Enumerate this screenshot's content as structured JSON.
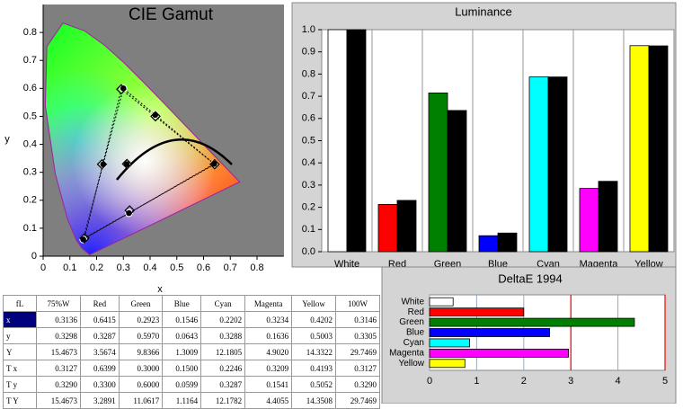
{
  "chart_data": [
    {
      "type": "scatter",
      "title": "CIE Gamut",
      "x_label": "x",
      "y_label": "y",
      "xlim": [
        0,
        0.9
      ],
      "ylim": [
        0,
        0.9
      ],
      "xticks": [
        0,
        0.1,
        0.2,
        0.3,
        0.4,
        0.5,
        0.6,
        0.7,
        0.8
      ],
      "yticks": [
        0,
        0.1,
        0.2,
        0.3,
        0.4,
        0.5,
        0.6,
        0.7,
        0.8
      ],
      "gamut_triangle": [
        1,
        2,
        3
      ],
      "series": [
        {
          "marker": "circle",
          "color": "#000000",
          "x": [
            0.3127,
            0.6399,
            0.3,
            0.15,
            0.2246,
            0.3209,
            0.4193
          ],
          "values": [
            0.329,
            0.33,
            0.6,
            0.0599,
            0.3287,
            0.1541,
            0.5052
          ]
        },
        {
          "marker": "diamond",
          "color": "#000000",
          "x": [
            0.3136,
            0.6415,
            0.2923,
            0.1546,
            0.2202,
            0.3234,
            0.4202
          ],
          "values": [
            0.3298,
            0.3287,
            0.597,
            0.0643,
            0.3288,
            0.1636,
            0.5003
          ]
        }
      ]
    },
    {
      "type": "bar",
      "title": "Luminance",
      "categories": [
        "White",
        "Red",
        "Green",
        "Blue",
        "Cyan",
        "Magenta",
        "Yellow"
      ],
      "ylim": [
        0,
        1.0
      ],
      "yticks": [
        {
          "value": 0,
          "label": "0.0"
        },
        0.1,
        0.2,
        0.3,
        0.4,
        0.5,
        0.6,
        0.7,
        0.8,
        0.9,
        {
          "value": 1,
          "label": "1.0"
        }
      ],
      "series": [
        {
          "colors": [
            "#ffffff",
            "#ff0000",
            "#008000",
            "#0000ff",
            "#00ffff",
            "#ff00ff",
            "#ffff00"
          ],
          "values": [
            1.0,
            0.213,
            0.715,
            0.072,
            0.787,
            0.285,
            0.928
          ]
        },
        {
          "color": "#000000",
          "values": [
            1.0,
            0.231,
            0.636,
            0.084,
            0.787,
            0.317,
            0.927
          ]
        }
      ]
    },
    {
      "type": "hbar",
      "title": "DeltaE 1994",
      "categories": [
        "White",
        "Red",
        "Green",
        "Blue",
        "Cyan",
        "Magenta",
        "Yellow"
      ],
      "colors": [
        "#ffffff",
        "#ff0000",
        "#008000",
        "#0000ff",
        "#00ffff",
        "#ff00ff",
        "#ffff00"
      ],
      "values": [
        0.5,
        2.0,
        4.35,
        2.55,
        0.85,
        2.95,
        0.75
      ],
      "xlim": [
        0,
        5
      ],
      "xticks": [
        0,
        1,
        2,
        3,
        4,
        5
      ],
      "threshold_lines": [
        3,
        5
      ],
      "threshold_color": "#ff0000"
    }
  ],
  "table": {
    "header": [
      "fL",
      "75%W",
      "Red",
      "Green",
      "Blue",
      "Cyan",
      "Magenta",
      "Yellow",
      "100W"
    ],
    "rows": [
      [
        "x",
        "0.3136",
        "0.6415",
        "0.2923",
        "0.1546",
        "0.2202",
        "0.3234",
        "0.4202",
        "0.3146"
      ],
      [
        "y",
        "0.3298",
        "0.3287",
        "0.5970",
        "0.0643",
        "0.3288",
        "0.1636",
        "0.5003",
        "0.3305"
      ],
      [
        "Y",
        "15.4673",
        "3.5674",
        "9.8366",
        "1.3009",
        "12.1805",
        "4.9020",
        "14.3322",
        "29.7469"
      ],
      [
        "T x",
        "0.3127",
        "0.6399",
        "0.3000",
        "0.1500",
        "0.2246",
        "0.3209",
        "0.4193",
        "0.3127"
      ],
      [
        "T y",
        "0.3290",
        "0.3300",
        "0.6000",
        "0.0599",
        "0.3287",
        "0.1541",
        "0.5052",
        "0.3290"
      ],
      [
        "T Y",
        "15.4673",
        "3.2891",
        "11.0617",
        "1.1164",
        "12.1782",
        "4.4055",
        "14.3508",
        "29.7469"
      ]
    ]
  }
}
